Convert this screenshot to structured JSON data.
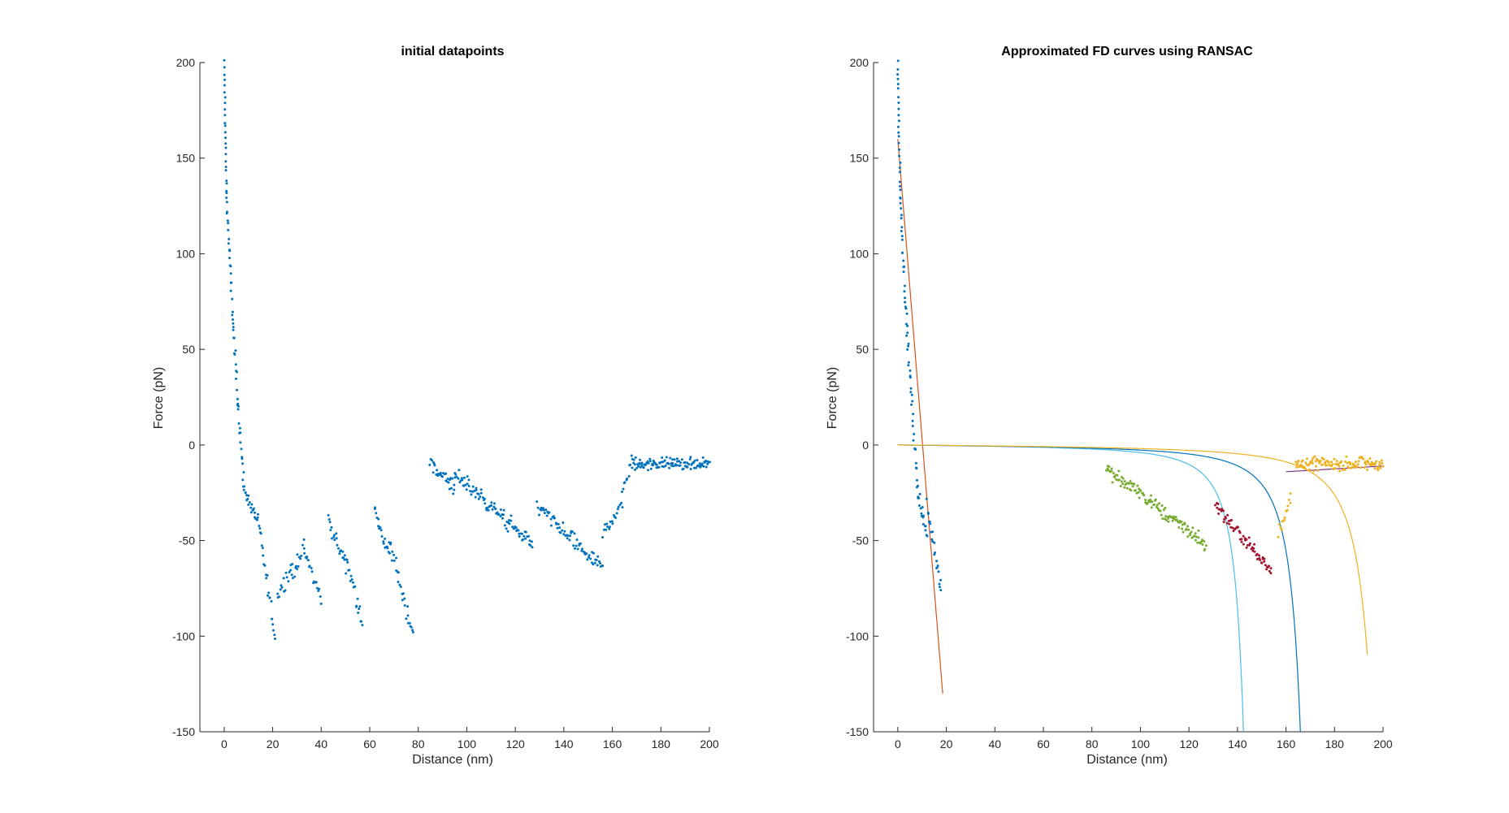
{
  "chart_data": [
    {
      "type": "scatter",
      "title": "initial datapoints",
      "xlabel": "Distance (nm)",
      "ylabel": "Force (pN)",
      "xlim": [
        -10,
        200
      ],
      "ylim": [
        -150,
        200
      ],
      "xticks": [
        0,
        20,
        40,
        60,
        80,
        100,
        120,
        140,
        160,
        180,
        200
      ],
      "yticks": [
        -150,
        -100,
        -50,
        0,
        50,
        100,
        150,
        200
      ],
      "grid": false,
      "series": [
        {
          "color": "#0072BD",
          "segments": [
            {
              "x0": 0,
              "x1": 1,
              "y0": 200,
              "y1": 130,
              "n": 24,
              "noise": 2
            },
            {
              "x0": 1,
              "x1": 4,
              "y0": 130,
              "y1": 55,
              "n": 26,
              "noise": 5
            },
            {
              "x0": 4,
              "x1": 8,
              "y0": 55,
              "y1": -20,
              "n": 26,
              "noise": 6
            },
            {
              "x0": 8,
              "x1": 14,
              "y0": -22,
              "y1": -42,
              "n": 22,
              "noise": 5
            },
            {
              "x0": 14,
              "x1": 21,
              "y0": -40,
              "y1": -100,
              "n": 24,
              "noise": 6
            },
            {
              "x0": 22,
              "x1": 28,
              "y0": -80,
              "y1": -62,
              "n": 16,
              "noise": 6
            },
            {
              "x0": 28,
              "x1": 33,
              "y0": -68,
              "y1": -52,
              "n": 14,
              "noise": 6
            },
            {
              "x0": 33,
              "x1": 40,
              "y0": -56,
              "y1": -80,
              "n": 18,
              "noise": 6
            },
            {
              "x0": 43,
              "x1": 50,
              "y0": -40,
              "y1": -62,
              "n": 22,
              "noise": 6
            },
            {
              "x0": 50,
              "x1": 57,
              "y0": -58,
              "y1": -92,
              "n": 22,
              "noise": 7
            },
            {
              "x0": 62,
              "x1": 68,
              "y0": -35,
              "y1": -58,
              "n": 20,
              "noise": 6
            },
            {
              "x0": 68,
              "x1": 78,
              "y0": -50,
              "y1": -100,
              "n": 28,
              "noise": 8
            },
            {
              "x0": 85,
              "x1": 95,
              "y0": -10,
              "y1": -22,
              "n": 32,
              "noise": 6
            },
            {
              "x0": 95,
              "x1": 127,
              "y0": -15,
              "y1": -52,
              "n": 95,
              "noise": 6
            },
            {
              "x0": 129,
              "x1": 156,
              "y0": -32,
              "y1": -65,
              "n": 75,
              "noise": 6
            },
            {
              "x0": 156,
              "x1": 164,
              "y0": -45,
              "y1": -32,
              "n": 20,
              "noise": 6
            },
            {
              "x0": 164,
              "x1": 168,
              "y0": -25,
              "y1": -8,
              "n": 10,
              "noise": 5
            },
            {
              "x0": 168,
              "x1": 200,
              "y0": -10,
              "y1": -10,
              "n": 110,
              "noise": 5
            }
          ]
        }
      ]
    },
    {
      "type": "scatter",
      "title": "Approximated FD curves using RANSAC",
      "xlabel": "Distance (nm)",
      "ylabel": "Force (pN)",
      "xlim": [
        -10,
        200
      ],
      "ylim": [
        -150,
        200
      ],
      "xticks": [
        0,
        20,
        40,
        60,
        80,
        100,
        120,
        140,
        160,
        180,
        200
      ],
      "yticks": [
        -150,
        -100,
        -50,
        0,
        50,
        100,
        150,
        200
      ],
      "grid": false,
      "series": [
        {
          "color": "#0072BD",
          "segments": [
            {
              "x0": 0,
              "x1": 1,
              "y0": 200,
              "y1": 130,
              "n": 24,
              "noise": 2
            },
            {
              "x0": 1,
              "x1": 4,
              "y0": 130,
              "y1": 55,
              "n": 26,
              "noise": 5
            },
            {
              "x0": 4,
              "x1": 8,
              "y0": 55,
              "y1": -20,
              "n": 26,
              "noise": 6
            },
            {
              "x0": 8,
              "x1": 12,
              "y0": -22,
              "y1": -48,
              "n": 18,
              "noise": 6
            },
            {
              "x0": 12,
              "x1": 18,
              "y0": -32,
              "y1": -75,
              "n": 22,
              "noise": 6
            }
          ]
        },
        {
          "color": "#77AC30",
          "segments": [
            {
              "x0": 86,
              "x1": 127,
              "y0": -12,
              "y1": -52,
              "n": 130,
              "noise": 6
            }
          ]
        },
        {
          "color": "#A2142F",
          "segments": [
            {
              "x0": 131,
              "x1": 154,
              "y0": -32,
              "y1": -66,
              "n": 70,
              "noise": 5
            }
          ]
        },
        {
          "color": "#EDB120",
          "segments": [
            {
              "x0": 157,
              "x1": 162,
              "y0": -45,
              "y1": -28,
              "n": 14,
              "noise": 5
            },
            {
              "x0": 164,
              "x1": 200,
              "y0": -10,
              "y1": -10,
              "n": 120,
              "noise": 5
            }
          ]
        }
      ],
      "fit_lines": [
        {
          "color": "#D95319",
          "kind": "line",
          "x": [
            0,
            18.5
          ],
          "y": [
            160,
            -130
          ]
        },
        {
          "color": "#7E2F8E",
          "kind": "line",
          "x": [
            160,
            200
          ],
          "y": [
            -14,
            -11
          ]
        },
        {
          "color": "#4DBEEE",
          "kind": "wlc",
          "Lc": 150,
          "K": 1.5,
          "x_end": 143
        },
        {
          "color": "#0072BD",
          "kind": "wlc",
          "Lc": 175,
          "K": 1.6,
          "x_end": 166.5
        },
        {
          "color": "#EDB120",
          "kind": "wlc",
          "Lc": 206,
          "K": 1.6,
          "x_end": 193.5
        }
      ]
    }
  ]
}
